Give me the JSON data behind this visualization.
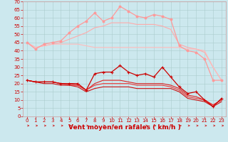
{
  "bg_color": "#cce8ee",
  "grid_color": "#aacccc",
  "xlabel": "Vent moyen/en rafales ( km/h )",
  "xlabel_color": "#cc0000",
  "xlabel_fontsize": 6.5,
  "ytick_color": "#cc0000",
  "xtick_color": "#cc0000",
  "tick_fontsize": 5.0,
  "ylim": [
    0,
    70
  ],
  "xlim": [
    -0.5,
    23.5
  ],
  "yticks": [
    0,
    5,
    10,
    15,
    20,
    25,
    30,
    35,
    40,
    45,
    50,
    55,
    60,
    65,
    70
  ],
  "xticks": [
    0,
    1,
    2,
    3,
    4,
    5,
    6,
    7,
    8,
    9,
    10,
    11,
    12,
    13,
    14,
    15,
    16,
    17,
    18,
    19,
    20,
    21,
    22,
    23
  ],
  "series": [
    {
      "x": [
        0,
        1,
        2,
        3,
        4,
        5,
        6,
        7,
        8,
        9,
        10,
        11,
        12,
        13,
        14,
        15,
        16,
        17,
        18,
        19,
        20,
        21,
        22,
        23
      ],
      "y": [
        45,
        41,
        44,
        45,
        46,
        51,
        55,
        58,
        63,
        58,
        60,
        67,
        64,
        61,
        60,
        62,
        61,
        59,
        43,
        40,
        39,
        35,
        22,
        22
      ],
      "color": "#ff9999",
      "lw": 0.9,
      "marker": "o",
      "ms": 2.0,
      "zorder": 3
    },
    {
      "x": [
        0,
        1,
        2,
        3,
        4,
        5,
        6,
        7,
        8,
        9,
        10,
        11,
        12,
        13,
        14,
        15,
        16,
        17,
        18,
        19,
        20,
        21,
        22,
        23
      ],
      "y": [
        45,
        42,
        43,
        44,
        45,
        47,
        49,
        51,
        54,
        55,
        57,
        57,
        57,
        56,
        56,
        56,
        55,
        53,
        44,
        42,
        41,
        39,
        30,
        22
      ],
      "color": "#ffaaaa",
      "lw": 0.8,
      "marker": null,
      "ms": 0,
      "zorder": 2
    },
    {
      "x": [
        0,
        1,
        2,
        3,
        4,
        5,
        6,
        7,
        8,
        9,
        10,
        11,
        12,
        13,
        14,
        15,
        16,
        17,
        18,
        19,
        20,
        21,
        22,
        23
      ],
      "y": [
        45,
        42,
        43,
        44,
        44,
        44,
        44,
        43,
        42,
        42,
        42,
        42,
        42,
        42,
        42,
        42,
        42,
        42,
        42,
        41,
        41,
        40,
        30,
        22
      ],
      "color": "#ffbbbb",
      "lw": 0.8,
      "marker": null,
      "ms": 0,
      "zorder": 2
    },
    {
      "x": [
        0,
        1,
        2,
        3,
        4,
        5,
        6,
        7,
        8,
        9,
        10,
        11,
        12,
        13,
        14,
        15,
        16,
        17,
        18,
        19,
        20,
        21,
        22,
        23
      ],
      "y": [
        22,
        21,
        21,
        21,
        20,
        20,
        20,
        16,
        26,
        27,
        27,
        31,
        27,
        25,
        26,
        24,
        30,
        24,
        18,
        14,
        15,
        10,
        6,
        11
      ],
      "color": "#cc0000",
      "lw": 0.9,
      "marker": "+",
      "ms": 3.0,
      "zorder": 5
    },
    {
      "x": [
        0,
        1,
        2,
        3,
        4,
        5,
        6,
        7,
        8,
        9,
        10,
        11,
        12,
        13,
        14,
        15,
        16,
        17,
        18,
        19,
        20,
        21,
        22,
        23
      ],
      "y": [
        22,
        21,
        21,
        21,
        20,
        20,
        19,
        16,
        20,
        22,
        22,
        22,
        21,
        20,
        20,
        20,
        20,
        19,
        17,
        13,
        12,
        10,
        7,
        10
      ],
      "color": "#dd2222",
      "lw": 0.8,
      "marker": null,
      "ms": 0,
      "zorder": 4
    },
    {
      "x": [
        0,
        1,
        2,
        3,
        4,
        5,
        6,
        7,
        8,
        9,
        10,
        11,
        12,
        13,
        14,
        15,
        16,
        17,
        18,
        19,
        20,
        21,
        22,
        23
      ],
      "y": [
        22,
        21,
        21,
        21,
        20,
        19,
        19,
        16,
        19,
        20,
        20,
        20,
        20,
        19,
        19,
        19,
        19,
        18,
        16,
        12,
        11,
        10,
        7,
        10
      ],
      "color": "#ee3333",
      "lw": 0.8,
      "marker": null,
      "ms": 0,
      "zorder": 4
    },
    {
      "x": [
        0,
        1,
        2,
        3,
        4,
        5,
        6,
        7,
        8,
        9,
        10,
        11,
        12,
        13,
        14,
        15,
        16,
        17,
        18,
        19,
        20,
        21,
        22,
        23
      ],
      "y": [
        22,
        21,
        20,
        20,
        19,
        19,
        18,
        15,
        17,
        18,
        18,
        18,
        18,
        17,
        17,
        17,
        17,
        17,
        15,
        11,
        10,
        9,
        6,
        9
      ],
      "color": "#cc1111",
      "lw": 0.8,
      "marker": null,
      "ms": 0,
      "zorder": 4
    }
  ],
  "arrow_color": "#cc2222",
  "spine_color": "#cc9999"
}
